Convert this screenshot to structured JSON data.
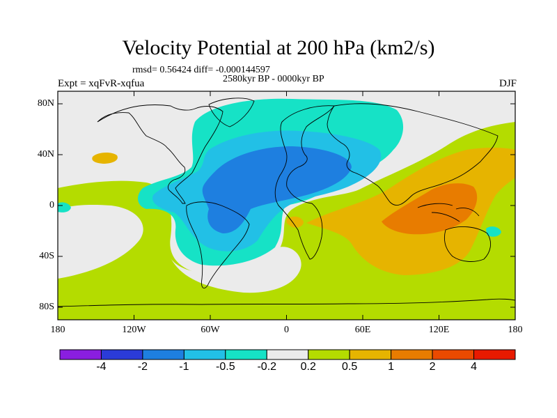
{
  "title": "Velocity Potential at 200 hPa (km2/s)",
  "stats": "rmsd= 0.56424 diff= -0.000144597",
  "period": "2580kyr BP - 0000kyr BP",
  "experiment": "Expt = xqFvR-xqfua",
  "season": "DJF",
  "lat_ticks": [
    "80N",
    "40N",
    "0",
    "40S",
    "80S"
  ],
  "lon_ticks": [
    "180",
    "120W",
    "60W",
    "0",
    "60E",
    "120E",
    "180"
  ],
  "colorbar": {
    "labels": [
      "-4",
      "-2",
      "-1",
      "-0.5",
      "-0.2",
      "0.2",
      "0.5",
      "1",
      "2",
      "4"
    ],
    "colors": [
      "#8a1ee0",
      "#2b3bd8",
      "#1e7fe0",
      "#22c0e6",
      "#16e2c6",
      "#ebebeb",
      "#b4dc00",
      "#e6b400",
      "#e87c00",
      "#ea4a00",
      "#e81a00"
    ]
  },
  "chart_data": {
    "type": "contour-map",
    "variable": "Velocity Potential at 200 hPa",
    "units": "km2/s",
    "levels": [
      -4,
      -2,
      -1,
      -0.5,
      -0.2,
      0.2,
      0.5,
      1,
      2,
      4
    ],
    "lon_range": [
      -180,
      180
    ],
    "lat_range": [
      -90,
      90
    ],
    "features": [
      {
        "region": "Atlantic / South America / Africa",
        "range": "-2 to -1",
        "sign": "negative"
      },
      {
        "region": "North Atlantic / Europe / Asia",
        "range": "-0.5 to -0.2",
        "sign": "negative"
      },
      {
        "region": "Indian Ocean / Maritime Continent",
        "range": "1 to 2",
        "sign": "positive"
      },
      {
        "region": "Western Pacific / Southern Indian Ocean",
        "range": "0.5 to 1",
        "sign": "positive"
      },
      {
        "region": "Eastern Pacific / North America",
        "range": "0.2 to 0.5",
        "sign": "positive"
      }
    ]
  }
}
